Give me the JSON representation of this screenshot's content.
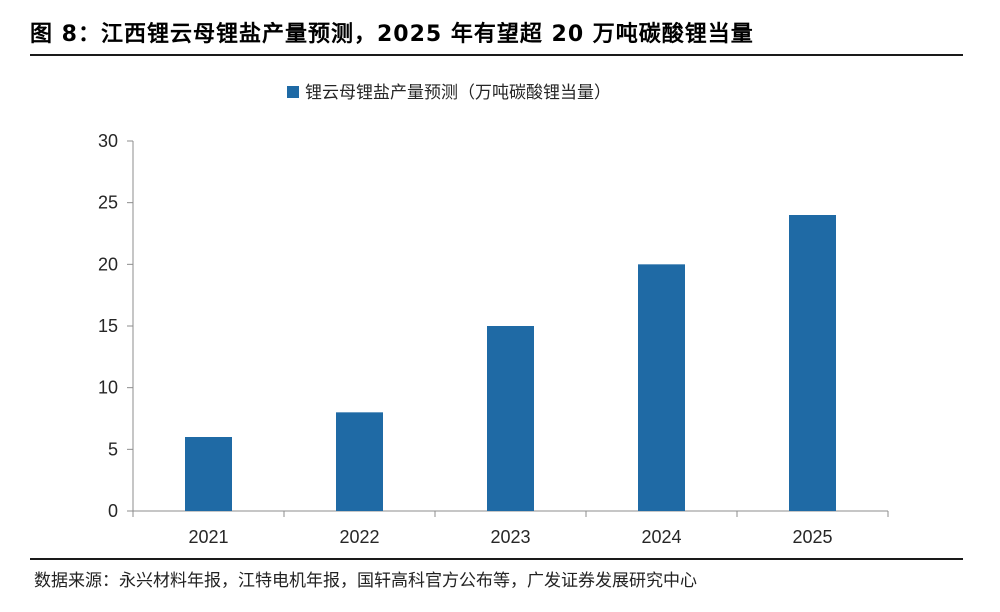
{
  "figure": {
    "title": "图 8：江西锂云母锂盐产量预测，2025 年有望超 20 万吨碳酸锂当量",
    "source": "数据来源：永兴材料年报，江特电机年报，国轩高科官方公布等，广发证券发展研究中心"
  },
  "chart_data": {
    "type": "bar",
    "categories": [
      "2021",
      "2022",
      "2023",
      "2024",
      "2025"
    ],
    "series": [
      {
        "name": "锂云母锂盐产量预测（万吨碳酸锂当量）",
        "values": [
          6,
          8,
          15,
          20,
          24
        ],
        "color": "#1f6aa5"
      }
    ],
    "ylim": [
      0,
      30
    ],
    "yticks": [
      0,
      5,
      10,
      15,
      20,
      25,
      30
    ],
    "grid": false,
    "legend": "top-center"
  }
}
